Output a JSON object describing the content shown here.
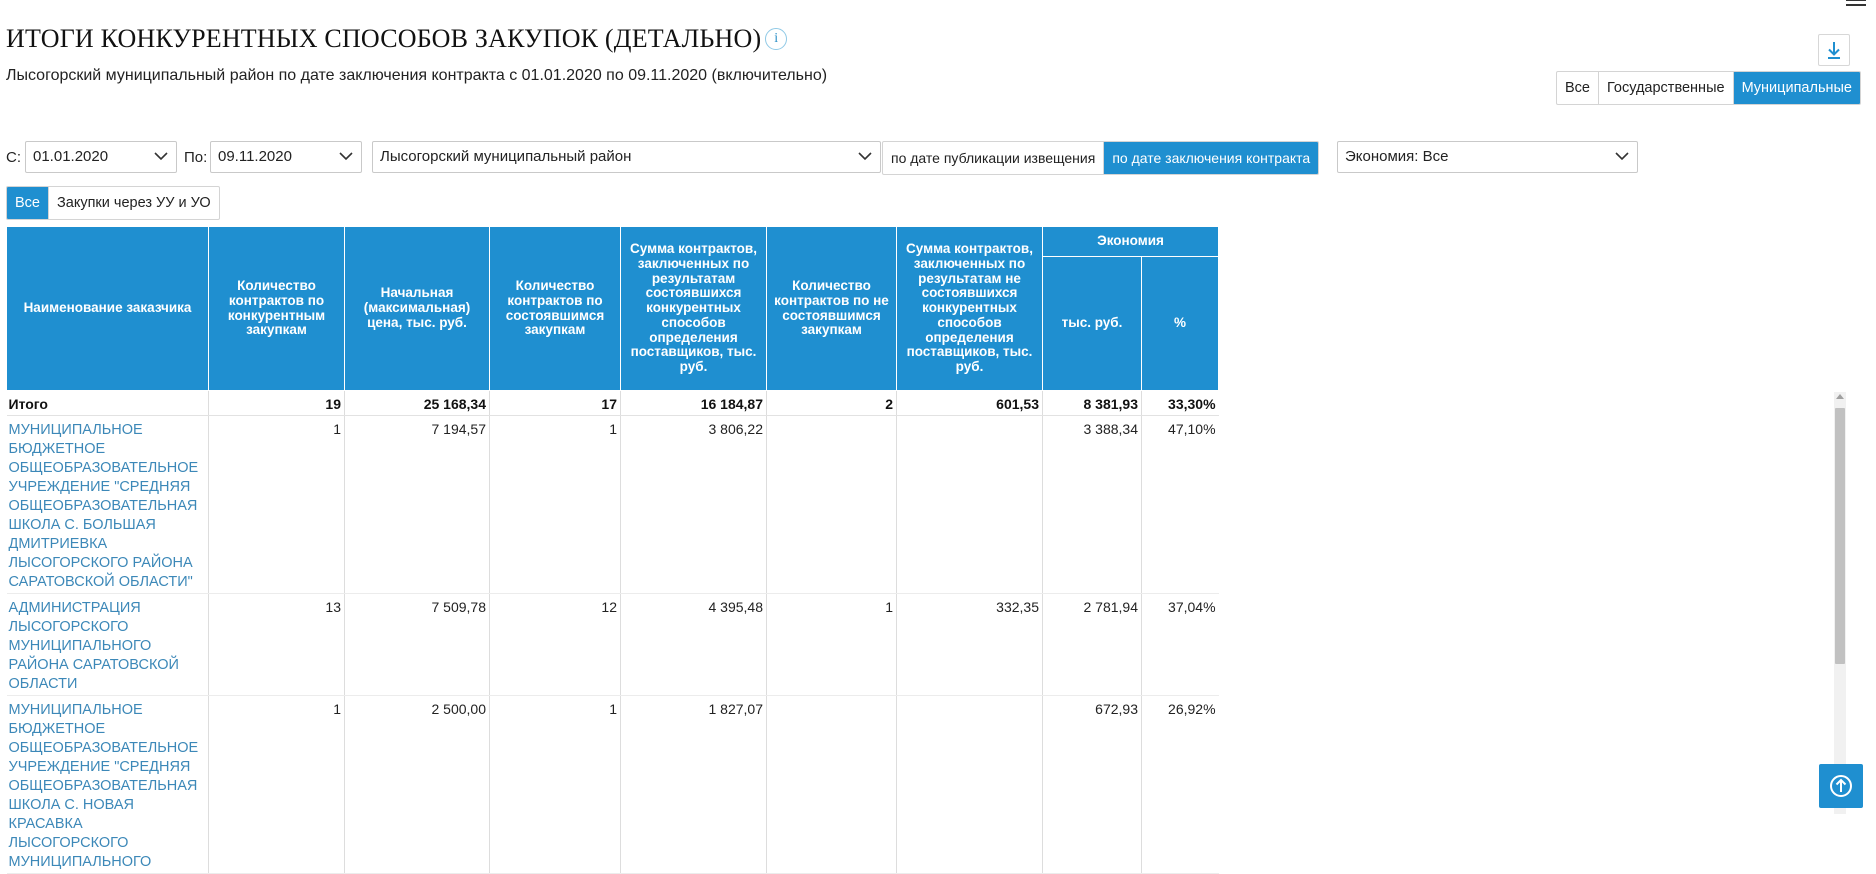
{
  "page": {
    "title": "ИТОГИ КОНКУРЕНТНЫХ СПОСОБОВ ЗАКУПОК (ДЕТАЛЬНО)",
    "info_icon_glyph": "i",
    "subtitle": "Лысогорский муниципальный район по дате заключения контракта с 01.01.2020 по 09.11.2020 (включительно)"
  },
  "scope_filter": {
    "options": [
      "Все",
      "Государственные",
      "Муниципальные"
    ],
    "active": "Муниципальные"
  },
  "filters": {
    "from_label": "С:",
    "from_value": "01.01.2020",
    "to_label": "По:",
    "to_value": "09.11.2020",
    "region_value": "Лысогорский муниципальный район",
    "date_mode_options": [
      "по дате публикации извещения",
      "по дате заключения контракта"
    ],
    "date_mode_active": "по дате заключения контракта",
    "economy_value": "Экономия: Все"
  },
  "buyer_filter": {
    "options": [
      "Все",
      "Закупки через УУ и УО"
    ],
    "active": "Все"
  },
  "table": {
    "headers": {
      "name": "Наименование заказчика",
      "count_competitive": "Количество контрактов по конкурентным закупкам",
      "initial_price": "Начальная (максимальная) цена, тыс. руб.",
      "count_held": "Количество контрактов по состоявшимся закупкам",
      "sum_held": "Сумма контрактов, заключенных по результатам состоявшихся конкурентных способов определения поставщиков, тыс. руб.",
      "count_not_held": "Количество контрактов по не состоявшимся закупкам",
      "sum_not_held": "Сумма контрактов, заключенных по результатам не состоявшихся конкурентных способов определения поставщиков, тыс. руб.",
      "economy": "Экономия",
      "economy_rub": "тыс. руб.",
      "economy_pct": "%"
    },
    "total": {
      "name": "Итого",
      "count_competitive": "19",
      "initial_price": "25 168,34",
      "count_held": "17",
      "sum_held": "16 184,87",
      "count_not_held": "2",
      "sum_not_held": "601,53",
      "economy_rub": "8 381,93",
      "economy_pct": "33,30%"
    },
    "rows": [
      {
        "name": "МУНИЦИПАЛЬНОЕ БЮДЖЕТНОЕ ОБЩЕОБРАЗОВАТЕЛЬНОЕ УЧРЕЖДЕНИЕ \"СРЕДНЯЯ ОБЩЕОБРАЗОВАТЕЛЬНАЯ ШКОЛА С. БОЛЬШАЯ ДМИТРИЕВКА ЛЫСОГОРСКОГО РАЙОНА САРАТОВСКОЙ ОБЛАСТИ\"",
        "count_competitive": "1",
        "initial_price": "7 194,57",
        "count_held": "1",
        "sum_held": "3 806,22",
        "count_not_held": "",
        "sum_not_held": "",
        "economy_rub": "3 388,34",
        "economy_pct": "47,10%"
      },
      {
        "name": "АДМИНИСТРАЦИЯ ЛЫСОГОРСКОГО МУНИЦИПАЛЬНОГО РАЙОНА САРАТОВСКОЙ ОБЛАСТИ",
        "count_competitive": "13",
        "initial_price": "7 509,78",
        "count_held": "12",
        "sum_held": "4 395,48",
        "count_not_held": "1",
        "sum_not_held": "332,35",
        "economy_rub": "2 781,94",
        "economy_pct": "37,04%"
      },
      {
        "name": "МУНИЦИПАЛЬНОЕ БЮДЖЕТНОЕ ОБЩЕОБРАЗОВАТЕЛЬНОЕ УЧРЕЖДЕНИЕ \"СРЕДНЯЯ ОБЩЕОБРАЗОВАТЕЛЬНАЯ ШКОЛА С. НОВАЯ КРАСАВКА ЛЫСОГОРСКОГО МУНИЦИПАЛЬНОГО",
        "count_competitive": "1",
        "initial_price": "2 500,00",
        "count_held": "1",
        "sum_held": "1 827,07",
        "count_not_held": "",
        "sum_not_held": "",
        "economy_rub": "672,93",
        "economy_pct": "26,92%"
      }
    ]
  },
  "icons": {
    "menu": "menu-icon",
    "download": "download-icon",
    "scroll_to_top": "arrow-up-circle-icon"
  },
  "colors": {
    "accent": "#1f8fd0",
    "link": "#3c88b8"
  }
}
